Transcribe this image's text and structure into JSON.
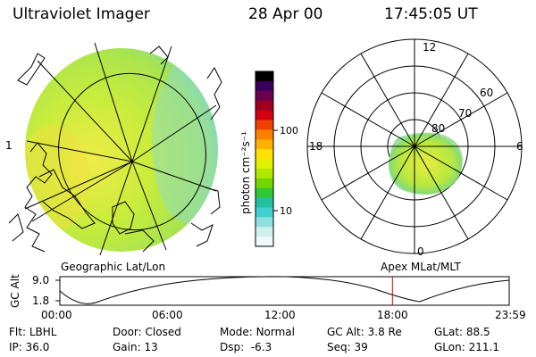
{
  "header": {
    "instrument": "Ultraviolet Imager",
    "date": "28 Apr 00",
    "time": "17:45:05 UT"
  },
  "colorbar": {
    "unit_label": "photon cm⁻²s⁻¹",
    "ticks": [
      "100",
      "10"
    ],
    "colors": [
      "#000000",
      "#3a005a",
      "#6a0050",
      "#a00020",
      "#d00010",
      "#f04000",
      "#ff8000",
      "#ffb000",
      "#ffe000",
      "#e0f000",
      "#b0e800",
      "#70d800",
      "#30c830",
      "#20c0a0",
      "#40d0d0",
      "#90e0e0",
      "#d0f0f0",
      "#f0f8f8"
    ]
  },
  "left_panel": {
    "caption": "Geographic Lat/Lon"
  },
  "right_panel": {
    "caption": "Apex MLat/MLT",
    "mlt_labels": {
      "top": "12",
      "left": "18",
      "right": "6",
      "bottom": "0"
    },
    "lat_labels": [
      "60",
      "70",
      "80"
    ]
  },
  "altitude_plot": {
    "ylabel": "GC Alt",
    "yticks": [
      "9.0",
      "1.8"
    ],
    "xticks": [
      "00:00",
      "06:00",
      "12:00",
      "18:00",
      "23:59"
    ],
    "marker_time": "17:45",
    "marker_color": "#d00000"
  },
  "footer": {
    "row1": [
      {
        "label": "Flt:",
        "value": "LBHL"
      },
      {
        "label": "Door:",
        "value": "Closed"
      },
      {
        "label": "Mode:",
        "value": "Normal"
      },
      {
        "label": "GC Alt:",
        "value": "3.8 Re"
      },
      {
        "label": "GLat:",
        "value": "88.5"
      }
    ],
    "row2": [
      {
        "label": "IP:",
        "value": "36.0"
      },
      {
        "label": "Gain:",
        "value": "13"
      },
      {
        "label": "Dsp:",
        "value": "-6.3"
      },
      {
        "label": "Seq:",
        "value": "39"
      },
      {
        "label": "GLon:",
        "value": "211.1"
      }
    ]
  },
  "colors": {
    "image_base": "#c8ec3c",
    "image_warm": "#f0e840",
    "image_cool": "#80d8a0",
    "marker": "#d00000"
  }
}
